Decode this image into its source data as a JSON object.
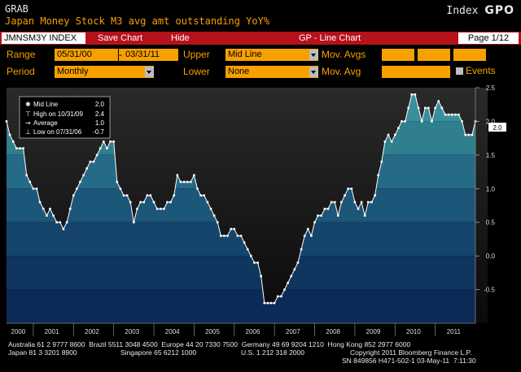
{
  "header": {
    "grab": "GRAB",
    "title": "Japan Money Stock M3 avg amt outstanding YoY%",
    "index_label": "Index",
    "index_code": "GPO"
  },
  "toolbar": {
    "ticker": "JMNSM3Y INDEX",
    "save": "Save Chart",
    "hide": "Hide",
    "chart_type": "GP - Line Chart",
    "page": "Page 1/12"
  },
  "controls": {
    "range_label": "Range",
    "range_start": "05/31/00",
    "range_sep": "-",
    "range_end": "03/31/11",
    "upper_label": "Upper",
    "upper_value": "Mid Line",
    "mov_avgs_label": "Mov. Avgs",
    "period_label": "Period",
    "period_value": "Monthly",
    "lower_label": "Lower",
    "lower_value": "None",
    "mov_avg_label": "Mov. Avg",
    "events_label": "Events"
  },
  "legend": {
    "mid_label": "Mid Line",
    "mid_value": "2.0",
    "high_label": "High on 10/31/09",
    "high_value": "2.4",
    "avg_label": "Average",
    "avg_value": "1.0",
    "low_label": "Low on 07/31/06",
    "low_value": "-0.7"
  },
  "last_value": "2.0",
  "chart_data": {
    "type": "area",
    "x_start": "2000-05",
    "x_end": "2011-03",
    "xlabel": "",
    "ylabel": "",
    "ylim": [
      -1.0,
      2.5
    ],
    "yticks": [
      "2.5",
      "2.0",
      "1.5",
      "1.0",
      "0.5",
      "0.0",
      "-0.5"
    ],
    "year_labels": [
      "2000",
      "2001",
      "2002",
      "2003",
      "2004",
      "2005",
      "2006",
      "2007",
      "2008",
      "2009",
      "2010",
      "2011"
    ],
    "bands": [
      2.0,
      1.5,
      1.0,
      0.5,
      0.0,
      -0.5
    ],
    "series": [
      {
        "values": [
          2.0,
          1.8,
          1.7,
          1.6,
          1.6,
          1.6,
          1.2,
          1.1,
          1.0,
          1.0,
          0.8,
          0.7,
          0.6,
          0.7,
          0.6,
          0.5,
          0.5,
          0.4,
          0.5,
          0.7,
          0.9,
          1.0,
          1.1,
          1.2,
          1.3,
          1.4,
          1.4,
          1.5,
          1.6,
          1.7,
          1.6,
          1.7,
          1.7,
          1.1,
          1.0,
          0.9,
          0.9,
          0.8,
          0.5,
          0.7,
          0.8,
          0.8,
          0.9,
          0.9,
          0.8,
          0.7,
          0.7,
          0.7,
          0.8,
          0.8,
          0.9,
          1.2,
          1.1,
          1.1,
          1.1,
          1.1,
          1.2,
          1.0,
          0.9,
          0.9,
          0.8,
          0.7,
          0.6,
          0.5,
          0.3,
          0.3,
          0.3,
          0.4,
          0.4,
          0.3,
          0.3,
          0.2,
          0.1,
          0.0,
          -0.1,
          -0.1,
          -0.3,
          -0.7,
          -0.7,
          -0.7,
          -0.7,
          -0.6,
          -0.6,
          -0.5,
          -0.4,
          -0.3,
          -0.2,
          -0.1,
          0.1,
          0.3,
          0.4,
          0.3,
          0.5,
          0.6,
          0.6,
          0.7,
          0.7,
          0.8,
          0.8,
          0.6,
          0.8,
          0.9,
          1.0,
          1.0,
          0.8,
          0.7,
          0.8,
          0.6,
          0.8,
          0.8,
          0.9,
          1.2,
          1.4,
          1.7,
          1.8,
          1.7,
          1.8,
          1.9,
          2.0,
          2.0,
          2.2,
          2.4,
          2.4,
          2.2,
          2.0,
          2.2,
          2.2,
          2.0,
          2.2,
          2.3,
          2.2,
          2.1,
          2.1,
          2.1,
          2.1,
          2.1,
          2.0,
          1.8,
          1.8,
          1.8,
          2.0
        ]
      }
    ]
  },
  "footer": {
    "line1": "Australia 61 2 9777 8600  Brazil 5511 3048 4500  Europe 44 20 7330 7500  Germany 49 69 9204 1210  Hong Kong 852 2977 6000",
    "line2a": "Japan 81 3 3201 8900",
    "line2b": "Singapore 65 6212 1000",
    "line2c": "U.S. 1 212 318 2000",
    "line2d": "Copyright 2011 Bloomberg Finance L.P.",
    "line3": "SN 849856 H471-502-1 03-May-11  7:11:30"
  },
  "colors": {
    "orange": "#f7a000",
    "red_bar": "#b5121b",
    "area_top": "#2f7f8e",
    "area_bottom": "#0b2a55"
  }
}
